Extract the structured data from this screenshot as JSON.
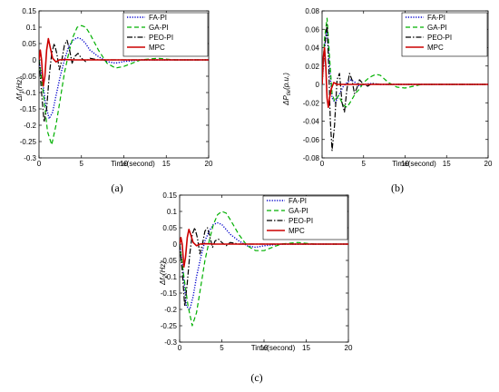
{
  "chart_data": [
    {
      "type": "line",
      "panel_label": "(a)",
      "ylabel_main": "Δf",
      "ylabel_sub": "1",
      "ylabel_unit": "(Hz)",
      "xlabel": "Time(second)",
      "xlim": [
        0,
        20
      ],
      "ylim": [
        -0.3,
        0.15
      ],
      "xticks": [
        "0",
        "5",
        "10",
        "15",
        "20"
      ],
      "yticks": [
        "-0.3",
        "-0.25",
        "-0.2",
        "-0.15",
        "-0.1",
        "-0.05",
        "0",
        "0.05",
        "0.1",
        "0.15"
      ],
      "legend_position": "top-right",
      "series": [
        {
          "name": "FA-PI",
          "color": "#0000cc",
          "style": "dotted",
          "x": [
            0,
            0.4,
            0.8,
            1.2,
            1.6,
            2.0,
            2.5,
            3.0,
            3.5,
            4.0,
            4.5,
            5.0,
            5.5,
            6.0,
            7.0,
            8.0,
            9.0,
            10.0,
            12.0,
            15.0,
            20.0
          ],
          "y": [
            0,
            -0.06,
            -0.14,
            -0.18,
            -0.16,
            -0.11,
            -0.05,
            0.0,
            0.04,
            0.06,
            0.068,
            0.064,
            0.05,
            0.03,
            0.01,
            -0.005,
            -0.01,
            -0.005,
            0.0,
            0.0,
            0.0
          ]
        },
        {
          "name": "GA-PI",
          "color": "#00b000",
          "style": "dashed",
          "x": [
            0,
            0.5,
            1.0,
            1.5,
            2.0,
            2.5,
            3.0,
            3.5,
            4.0,
            4.5,
            5.0,
            5.5,
            6.0,
            7.0,
            8.0,
            9.0,
            10.0,
            11.0,
            12.0,
            14.0,
            16.0,
            20.0
          ],
          "y": [
            0,
            -0.1,
            -0.22,
            -0.26,
            -0.2,
            -0.12,
            -0.04,
            0.02,
            0.07,
            0.1,
            0.105,
            0.1,
            0.08,
            0.03,
            -0.01,
            -0.025,
            -0.02,
            -0.01,
            0.0,
            0.005,
            0.0,
            0.0
          ]
        },
        {
          "name": "PEO-PI",
          "color": "#000000",
          "style": "dashdot",
          "x": [
            0,
            0.3,
            0.6,
            0.9,
            1.2,
            1.5,
            1.8,
            2.1,
            2.4,
            2.7,
            3.0,
            3.3,
            3.6,
            3.9,
            4.2,
            4.6,
            5.0,
            5.5,
            6.0,
            7.0,
            8.0,
            10.0,
            20.0
          ],
          "y": [
            0,
            -0.1,
            -0.19,
            -0.15,
            -0.05,
            0.02,
            0.05,
            0.02,
            -0.03,
            0.0,
            0.045,
            0.06,
            0.03,
            -0.01,
            0.01,
            0.02,
            0.005,
            -0.005,
            0.005,
            0.0,
            0.0,
            0.0,
            0.0
          ]
        },
        {
          "name": "MPC",
          "color": "#cc0000",
          "style": "solid",
          "x": [
            0,
            0.15,
            0.3,
            0.5,
            0.7,
            0.9,
            1.1,
            1.3,
            1.6,
            2.0,
            2.4,
            3.0,
            4.0,
            5.0,
            10.0,
            20.0
          ],
          "y": [
            0,
            0.03,
            0.0,
            -0.08,
            -0.05,
            0.03,
            0.065,
            0.04,
            0.005,
            -0.006,
            0.0,
            0.001,
            0.0,
            0.0,
            0.0,
            0.0
          ]
        }
      ]
    },
    {
      "type": "line",
      "panel_label": "(b)",
      "ylabel_main": "ΔP",
      "ylabel_sub": "tie",
      "ylabel_unit": "(p.u.)",
      "xlabel": "Time(second)",
      "xlim": [
        0,
        20
      ],
      "ylim": [
        -0.08,
        0.08
      ],
      "xticks": [
        "0",
        "5",
        "10",
        "15",
        "20"
      ],
      "yticks": [
        "-0.08",
        "-0.06",
        "-0.04",
        "-0.02",
        "0",
        "0.02",
        "0.04",
        "0.06",
        "0.08"
      ],
      "legend_position": "top-right",
      "series": [
        {
          "name": "FA-PI",
          "color": "#0000cc",
          "style": "dotted",
          "x": [
            0,
            0.3,
            0.6,
            0.9,
            1.2,
            1.6,
            2.0,
            2.5,
            3.0,
            3.5,
            4.0,
            4.5,
            5.0,
            6.0,
            7.0,
            8.0,
            10.0,
            20.0
          ],
          "y": [
            0,
            0.04,
            0.06,
            0.02,
            -0.015,
            -0.02,
            -0.012,
            -0.003,
            0.002,
            0.005,
            0.002,
            -0.002,
            0.0,
            0.001,
            0.0,
            0.0,
            0.0,
            0.0
          ]
        },
        {
          "name": "GA-PI",
          "color": "#00b000",
          "style": "dashed",
          "x": [
            0,
            0.3,
            0.6,
            0.9,
            1.2,
            1.5,
            2.0,
            2.5,
            3.0,
            3.5,
            4.0,
            4.5,
            5.0,
            5.5,
            6.0,
            6.5,
            7.0,
            7.5,
            8.0,
            9.0,
            10.0,
            11.0,
            12.0,
            14.0,
            20.0
          ],
          "y": [
            0,
            0.05,
            0.072,
            0.03,
            -0.01,
            -0.018,
            -0.012,
            -0.022,
            -0.025,
            -0.018,
            -0.01,
            -0.005,
            0.002,
            0.006,
            0.009,
            0.011,
            0.01,
            0.006,
            0.002,
            -0.003,
            -0.004,
            -0.002,
            0.0,
            0.0,
            0.0
          ]
        },
        {
          "name": "PEO-PI",
          "color": "#000000",
          "style": "dashdot",
          "x": [
            0,
            0.3,
            0.6,
            0.8,
            1.0,
            1.2,
            1.5,
            1.8,
            2.1,
            2.4,
            2.7,
            3.0,
            3.3,
            3.6,
            3.9,
            4.2,
            4.5,
            5.0,
            5.5,
            6.0,
            7.0,
            8.0,
            10.0,
            20.0
          ],
          "y": [
            0,
            0.04,
            0.065,
            0.02,
            -0.04,
            -0.072,
            -0.045,
            0.005,
            0.012,
            -0.02,
            -0.03,
            -0.005,
            0.012,
            0.005,
            -0.01,
            -0.004,
            0.005,
            0.0,
            -0.002,
            0.001,
            0.0,
            0.0,
            0.0,
            0.0
          ]
        },
        {
          "name": "MPC",
          "color": "#cc0000",
          "style": "solid",
          "x": [
            0,
            0.15,
            0.3,
            0.45,
            0.6,
            0.75,
            0.9,
            1.1,
            1.4,
            1.8,
            2.5,
            3.5,
            5.0,
            10.0,
            20.0
          ],
          "y": [
            0,
            0.03,
            0.04,
            0.02,
            -0.015,
            -0.025,
            -0.015,
            -0.005,
            0.002,
            0.0,
            0.0,
            0.0,
            0.0,
            0.0,
            0.0
          ]
        }
      ]
    },
    {
      "type": "line",
      "panel_label": "(c)",
      "ylabel_main": "Δf",
      "ylabel_sub": "2",
      "ylabel_unit": "(Hz)",
      "xlabel": "Time(second)",
      "xlim": [
        0,
        20
      ],
      "ylim": [
        -0.3,
        0.15
      ],
      "xticks": [
        "0",
        "5",
        "10",
        "15",
        "20"
      ],
      "yticks": [
        "-0.3",
        "-0.25",
        "-0.2",
        "-0.15",
        "-0.1",
        "-0.05",
        "0",
        "0.05",
        "0.1",
        "0.15"
      ],
      "legend_position": "top-right",
      "series": [
        {
          "name": "FA-PI",
          "color": "#0000cc",
          "style": "dotted",
          "x": [
            0,
            0.4,
            0.8,
            1.2,
            1.6,
            2.0,
            2.5,
            3.0,
            3.5,
            4.0,
            4.5,
            5.0,
            5.5,
            6.0,
            7.0,
            8.0,
            9.0,
            10.0,
            12.0,
            15.0,
            20.0
          ],
          "y": [
            0,
            -0.08,
            -0.19,
            -0.2,
            -0.16,
            -0.1,
            -0.04,
            0.01,
            0.04,
            0.06,
            0.065,
            0.06,
            0.045,
            0.03,
            0.01,
            -0.005,
            -0.01,
            -0.005,
            0.0,
            0.0,
            0.0
          ]
        },
        {
          "name": "GA-PI",
          "color": "#00b000",
          "style": "dashed",
          "x": [
            0,
            0.5,
            1.0,
            1.5,
            2.0,
            2.5,
            3.0,
            3.5,
            4.0,
            4.5,
            5.0,
            5.5,
            6.0,
            7.0,
            8.0,
            9.0,
            10.0,
            11.0,
            12.0,
            14.0,
            16.0,
            20.0
          ],
          "y": [
            0,
            -0.1,
            -0.19,
            -0.25,
            -0.21,
            -0.13,
            -0.05,
            0.01,
            0.06,
            0.09,
            0.1,
            0.095,
            0.075,
            0.03,
            -0.005,
            -0.02,
            -0.02,
            -0.01,
            0.0,
            0.005,
            0.0,
            0.0
          ]
        },
        {
          "name": "PEO-PI",
          "color": "#000000",
          "style": "dashdot",
          "x": [
            0,
            0.3,
            0.6,
            0.9,
            1.2,
            1.5,
            1.8,
            2.1,
            2.4,
            2.7,
            3.0,
            3.3,
            3.6,
            3.9,
            4.2,
            4.6,
            5.0,
            5.5,
            6.0,
            7.0,
            8.0,
            10.0,
            20.0
          ],
          "y": [
            0,
            -0.08,
            -0.19,
            -0.12,
            -0.03,
            0.03,
            0.05,
            0.02,
            -0.03,
            0.0,
            0.04,
            0.05,
            0.02,
            -0.01,
            0.01,
            0.015,
            0.005,
            -0.005,
            0.005,
            0.0,
            0.0,
            0.0,
            0.0
          ]
        },
        {
          "name": "MPC",
          "color": "#cc0000",
          "style": "solid",
          "x": [
            0,
            0.15,
            0.3,
            0.5,
            0.7,
            0.9,
            1.1,
            1.3,
            1.6,
            2.0,
            2.4,
            3.0,
            4.0,
            5.0,
            10.0,
            20.0
          ],
          "y": [
            0,
            0.02,
            0.0,
            -0.07,
            -0.04,
            0.02,
            0.045,
            0.03,
            0.005,
            -0.005,
            0.0,
            0.001,
            0.0,
            0.0,
            0.0,
            0.0
          ]
        }
      ]
    }
  ]
}
